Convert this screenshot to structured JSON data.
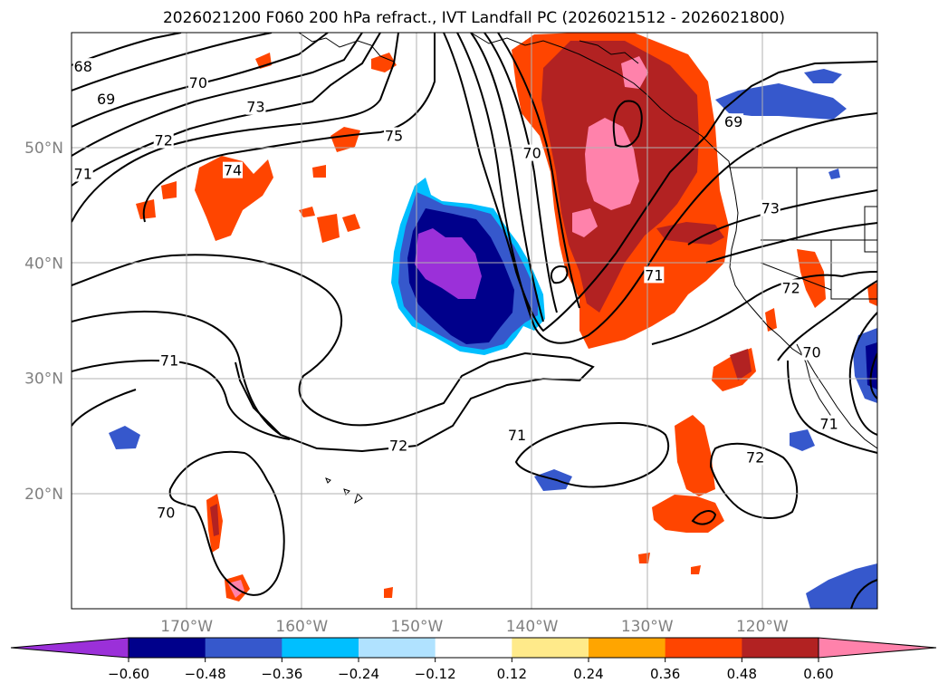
{
  "title": "2026021200 F060 200 hPa refract., IVT Landfall PC (2026021512 - 2026021800)",
  "axes": {
    "lon_ticks": [
      "170°W",
      "160°W",
      "150°W",
      "140°W",
      "130°W",
      "120°W"
    ],
    "lat_ticks": [
      "50°N",
      "40°N",
      "30°N",
      "20°N"
    ],
    "lon_range": [
      -180,
      -110
    ],
    "lat_range": [
      10,
      60
    ]
  },
  "colorbar": {
    "tick_labels": [
      "−0.60",
      "−0.48",
      "−0.36",
      "−0.24",
      "−0.12",
      "0.12",
      "0.24",
      "0.36",
      "0.48",
      "0.60"
    ],
    "colors": [
      "#9b30d9",
      "#00008b",
      "#3658cc",
      "#00bfff",
      "#b0e2ff",
      "#ffffff",
      "#ffea8a",
      "#ffa500",
      "#ff4500",
      "#b22222",
      "#ff82ab"
    ]
  },
  "contour_labels": [
    {
      "text": "68",
      "lon": -179,
      "lat": 57
    },
    {
      "text": "69",
      "lon": -177,
      "lat": 54.2
    },
    {
      "text": "70",
      "lon": -169,
      "lat": 55.6
    },
    {
      "text": "73",
      "lon": -164,
      "lat": 53.5
    },
    {
      "text": "72",
      "lon": -172,
      "lat": 50.6
    },
    {
      "text": "71",
      "lon": -179,
      "lat": 47.7
    },
    {
      "text": "74",
      "lon": -166,
      "lat": 48
    },
    {
      "text": "75",
      "lon": -152,
      "lat": 51
    },
    {
      "text": "70",
      "lon": -140,
      "lat": 49.5
    },
    {
      "text": "69",
      "lon": -122.5,
      "lat": 52.2
    },
    {
      "text": "73",
      "lon": -119.3,
      "lat": 44.7
    },
    {
      "text": "71",
      "lon": -129.4,
      "lat": 38.9
    },
    {
      "text": "72",
      "lon": -117.5,
      "lat": 37.8
    },
    {
      "text": "70",
      "lon": -115.7,
      "lat": 32.2
    },
    {
      "text": "71",
      "lon": -171.5,
      "lat": 31.5
    },
    {
      "text": "72",
      "lon": -151.6,
      "lat": 24.1
    },
    {
      "text": "71",
      "lon": -141.3,
      "lat": 25
    },
    {
      "text": "72",
      "lon": -120.6,
      "lat": 23.1
    },
    {
      "text": "71",
      "lon": -114.2,
      "lat": 26
    },
    {
      "text": "70",
      "lon": -171.8,
      "lat": 18.3
    }
  ],
  "colors": {
    "contour": "#000000",
    "grid": "#b0b0b0",
    "tick_text": "#808080"
  }
}
